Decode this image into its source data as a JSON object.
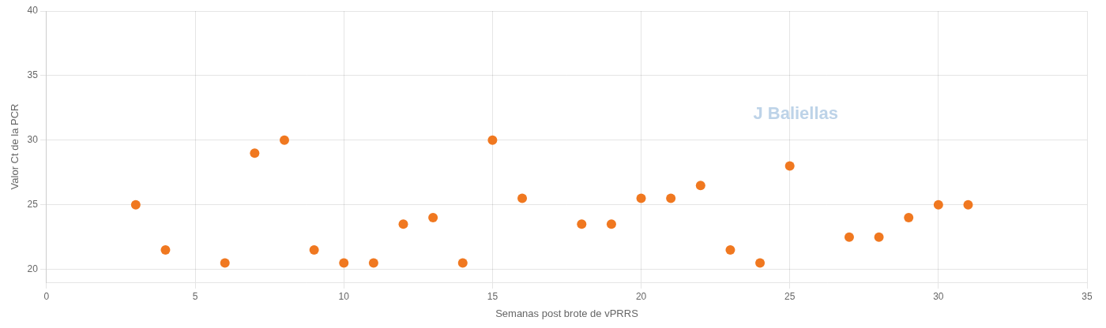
{
  "chart_data": {
    "type": "scatter",
    "x": [
      3,
      4,
      6,
      7,
      8,
      9,
      10,
      11,
      12,
      13,
      14,
      15,
      16,
      18,
      19,
      20,
      21,
      22,
      23,
      24,
      25,
      27,
      28,
      29,
      30,
      31
    ],
    "values": [
      25,
      21.5,
      20.5,
      29,
      30,
      21.5,
      20.5,
      20.5,
      23.5,
      24,
      20.5,
      30,
      25.5,
      23.5,
      23.5,
      25.5,
      25.5,
      26.5,
      21.5,
      20.5,
      28,
      22.5,
      22.5,
      24,
      25,
      25
    ],
    "color": "#F07820",
    "x_label": "Semanas post brote de vPRRS",
    "y_label": "Valor Ct de la PCR",
    "xlim": [
      0,
      35
    ],
    "xticks": [
      0,
      5,
      10,
      15,
      20,
      25,
      30,
      35
    ],
    "ylim": [
      19,
      40
    ],
    "yticks": [
      20,
      25,
      30,
      35,
      40
    ],
    "grid": true,
    "annotations": [
      {
        "text": "J Baliellas",
        "color": "#bdd3e8"
      }
    ]
  }
}
